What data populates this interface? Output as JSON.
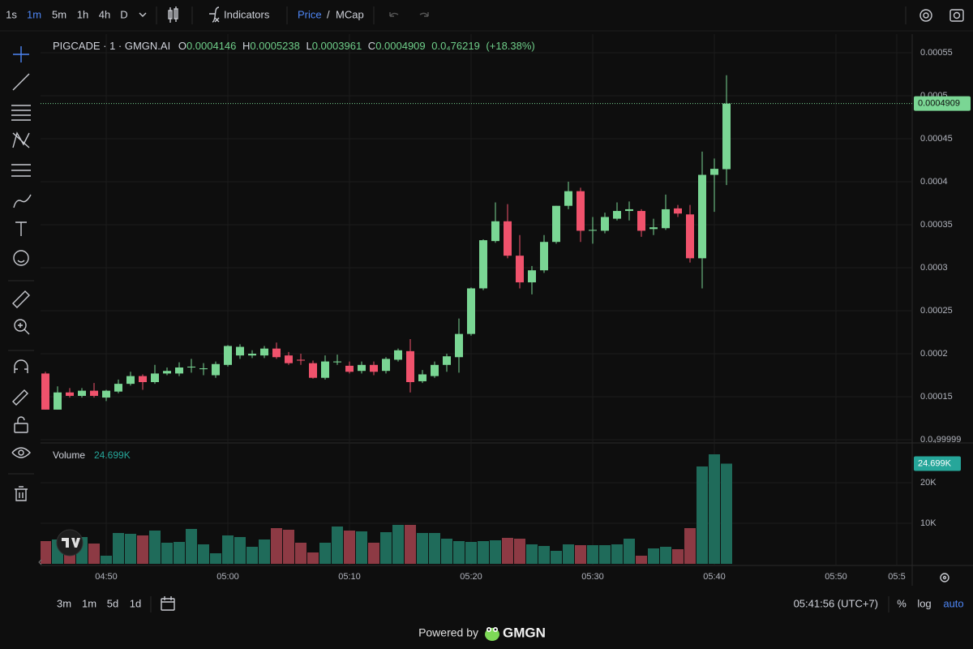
{
  "toolbar": {
    "intervals": [
      "1s",
      "1m",
      "5m",
      "1h",
      "4h",
      "D"
    ],
    "indicators": "Indicators",
    "price": "Price",
    "separator": "/",
    "mcap": "MCap"
  },
  "legend": {
    "labels": [
      "O",
      "H",
      "L",
      "C"
    ],
    "change": "0.0₄76219",
    "change_pct": "(+18.38%)"
  },
  "volume_legend": {
    "title": "Volume",
    "value": "24.699K"
  },
  "footer": {
    "ranges": [
      "3m",
      "1m",
      "5d",
      "1d"
    ],
    "clock": "05:41:56 (UTC+7)",
    "percent": "%",
    "log": "log",
    "auto": "auto"
  },
  "branding": {
    "powered": "Powered by",
    "name": "GMGN"
  },
  "chart_data": {
    "type": "candlestick",
    "title": "PIGCADE · 1 · GMGN.AI",
    "x": [
      "04:45",
      "04:46",
      "04:47",
      "04:48",
      "04:49",
      "04:50",
      "04:51",
      "04:52",
      "04:53",
      "04:54",
      "04:55",
      "04:56",
      "04:57",
      "04:58",
      "04:59",
      "05:00",
      "05:01",
      "05:02",
      "05:03",
      "05:04",
      "05:05",
      "05:06",
      "05:07",
      "05:08",
      "05:09",
      "05:10",
      "05:11",
      "05:12",
      "05:13",
      "05:14",
      "05:15",
      "05:16",
      "05:17",
      "05:18",
      "05:19",
      "05:20",
      "05:21",
      "05:22",
      "05:23",
      "05:24",
      "05:25",
      "05:26",
      "05:27",
      "05:28",
      "05:29",
      "05:30",
      "05:31",
      "05:32",
      "05:33",
      "05:34",
      "05:35",
      "05:36",
      "05:37",
      "05:38",
      "05:39",
      "05:40",
      "05:41"
    ],
    "open": [
      0.000177,
      0.000135,
      0.000155,
      0.000151,
      0.000157,
      0.000149,
      0.000156,
      0.000165,
      0.000174,
      0.000167,
      0.000177,
      0.000177,
      0.000184,
      0.000182,
      0.000175,
      0.000187,
      0.000198,
      0.000198,
      0.000198,
      0.000206,
      0.000198,
      0.000193,
      0.000189,
      0.000172,
      0.00019,
      0.000186,
      0.00018,
      0.000187,
      0.00018,
      0.000193,
      0.000203,
      0.000168,
      0.000174,
      0.000187,
      0.000196,
      0.000223,
      0.000276,
      0.000331,
      0.000354,
      0.000314,
      0.000283,
      0.000297,
      0.00033,
      0.000372,
      0.000389,
      0.000343,
      0.000343,
      0.000357,
      0.000366,
      0.000366,
      0.000345,
      0.000346,
      0.000369,
      0.000362,
      0.000311,
      0.000408,
      0.0004146
    ],
    "high": [
      0.000179,
      0.000162,
      0.00016,
      0.00016,
      0.000166,
      0.000158,
      0.00017,
      0.000179,
      0.000176,
      0.000187,
      0.000184,
      0.00019,
      0.000194,
      0.000189,
      0.000191,
      0.00021,
      0.000211,
      0.000204,
      0.000209,
      0.000213,
      0.000202,
      0.0002,
      0.000192,
      0.000198,
      0.000199,
      0.000191,
      0.000191,
      0.000191,
      0.000196,
      0.000206,
      0.000217,
      0.000181,
      0.000191,
      0.0002,
      0.000241,
      0.000277,
      0.000333,
      0.000376,
      0.000374,
      0.000338,
      0.000302,
      0.000338,
      0.000372,
      0.0004,
      0.000393,
      0.000359,
      0.000364,
      0.000376,
      0.000377,
      0.000368,
      0.000357,
      0.000385,
      0.000373,
      0.000373,
      0.000435,
      0.000427,
      0.0005238
    ],
    "low": [
      0.000135,
      0.000135,
      0.000149,
      0.000149,
      0.000149,
      0.000145,
      0.000154,
      0.000163,
      0.000158,
      0.000165,
      0.000175,
      0.000174,
      0.000178,
      0.000175,
      0.000172,
      0.000185,
      0.000194,
      0.000195,
      0.000195,
      0.000194,
      0.000187,
      0.000187,
      0.000171,
      0.00017,
      0.000187,
      0.000177,
      0.000177,
      0.000175,
      0.000177,
      0.000191,
      0.000155,
      0.000166,
      0.000172,
      0.000179,
      0.000178,
      0.000221,
      0.000274,
      0.000329,
      0.000311,
      0.000276,
      0.000269,
      0.000294,
      0.000328,
      0.000368,
      0.00033,
      0.000328,
      0.00034,
      0.000355,
      0.000355,
      0.000336,
      0.000338,
      0.000344,
      0.000359,
      0.000306,
      0.000276,
      0.000365,
      0.0003961
    ],
    "close": [
      0.000135,
      0.000155,
      0.000151,
      0.000157,
      0.000151,
      0.000157,
      0.000165,
      0.000174,
      0.000167,
      0.000177,
      0.00018,
      0.000184,
      0.000185,
      0.000183,
      0.000188,
      0.000209,
      0.000208,
      0.0002,
      0.000206,
      0.000196,
      0.000189,
      0.000192,
      0.000172,
      0.000191,
      0.000191,
      0.000179,
      0.000187,
      0.000179,
      0.000194,
      0.000204,
      0.000167,
      0.000176,
      0.000187,
      0.000197,
      0.000223,
      0.000276,
      0.000332,
      0.000354,
      0.000314,
      0.000283,
      0.000297,
      0.00033,
      0.000372,
      0.000389,
      0.000343,
      0.000344,
      0.000359,
      0.000366,
      0.000368,
      0.000343,
      0.000347,
      0.000368,
      0.000363,
      0.000311,
      0.000408,
      0.000415,
      0.0004909
    ],
    "volume": [
      5600,
      6000,
      6800,
      6600,
      5000,
      2000,
      7600,
      7400,
      7000,
      8200,
      5200,
      5400,
      8600,
      4800,
      2600,
      7000,
      6600,
      4200,
      6000,
      8800,
      8400,
      5200,
      2800,
      5200,
      9200,
      8200,
      8000,
      5200,
      7800,
      9600,
      9600,
      7600,
      7600,
      6200,
      5600,
      5400,
      5600,
      5800,
      6400,
      6200,
      4800,
      4400,
      3200,
      4800,
      4600,
      4600,
      4600,
      4800,
      6200,
      2000,
      3800,
      4200,
      3600,
      8800,
      24000,
      27000,
      24699
    ],
    "up_color": "#7ad694",
    "down_color": "#f0526c",
    "volume_up_color": "#1f6b5a",
    "volume_down_color": "#8d3a44",
    "xlim": [
      "04:45",
      "05:56"
    ],
    "xticks": [
      "04:50",
      "05:00",
      "05:10",
      "05:20",
      "05:30",
      "05:40",
      "05:50",
      {
        "value": "05:55",
        "label": "05:5"
      }
    ],
    "ylim": [
      9.72e-05,
      0.0005717
    ],
    "yticks": [
      0.00055,
      0.0005,
      0.00045,
      0.0004,
      0.00035,
      0.0003,
      0.00025,
      0.0002,
      0.00015,
      {
        "value": 9.9999e-05,
        "label": "0.0₄99999"
      }
    ],
    "volume_lim": [
      0,
      30000
    ],
    "volume_ticks": [
      {
        "value": 20000,
        "label": "20K"
      },
      {
        "value": 10000,
        "label": "10K"
      }
    ],
    "grid": true
  }
}
